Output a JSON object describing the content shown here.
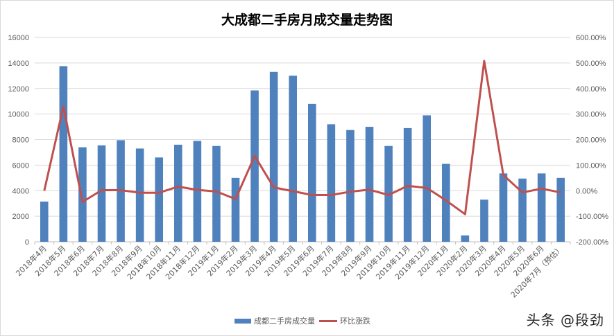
{
  "chart_data": {
    "type": "bar+line",
    "title": "大成都二手房月成交量走势图",
    "categories": [
      "2018年4月",
      "2018年5月",
      "2018年6月",
      "2018年7月",
      "2018年8月",
      "2018年9月",
      "2018年10月",
      "2018年11月",
      "2018年12月",
      "2019年1月",
      "2019年2月",
      "2019年3月",
      "2019年4月",
      "2019年5月",
      "2019年6月",
      "2019年7月",
      "2019年8月",
      "2019年9月",
      "2019年10月",
      "2019年11月",
      "2019年12月",
      "2020年1月",
      "2020年2月",
      "2020年3月",
      "2020年4月",
      "2020年5月",
      "2020年6月",
      "2020年7月（预估）"
    ],
    "series": [
      {
        "name": "成都二手房成交量",
        "type": "bar",
        "axis": "left",
        "color": "#4f81bd",
        "values": [
          3150,
          13750,
          7400,
          7550,
          7950,
          7300,
          6600,
          7600,
          7900,
          7500,
          5000,
          11850,
          13300,
          13000,
          10800,
          9200,
          8750,
          9000,
          7500,
          8900,
          9900,
          6100,
          500,
          3300,
          5350,
          4950,
          5350,
          5000
        ]
      },
      {
        "name": "环比涨跌",
        "type": "line",
        "axis": "right",
        "unit": "%",
        "color": "#c0504d",
        "values": [
          0,
          330,
          -44,
          2,
          2,
          -8,
          -8,
          16,
          3,
          -3,
          -33,
          136,
          13,
          -2,
          -17,
          -17,
          -4,
          4,
          -17,
          19,
          11,
          -38,
          -92,
          508,
          61,
          -7,
          8,
          -7
        ]
      }
    ],
    "y_left": {
      "min": 0,
      "max": 16000,
      "ticks": [
        "0",
        "2000",
        "4000",
        "6000",
        "8000",
        "10000",
        "12000",
        "14000",
        "16000"
      ]
    },
    "y_right": {
      "min": -200,
      "max": 600,
      "ticks": [
        "-200.00%",
        "-100.00%",
        "0.00%",
        "100.00%",
        "200.00%",
        "300.00%",
        "400.00%",
        "500.00%",
        "600.00%"
      ]
    },
    "grid": true,
    "legend_position": "bottom"
  },
  "legend": {
    "bar_label": "成都二手房成交量",
    "line_label": "环比涨跌"
  },
  "watermark": "头条 @段劲"
}
